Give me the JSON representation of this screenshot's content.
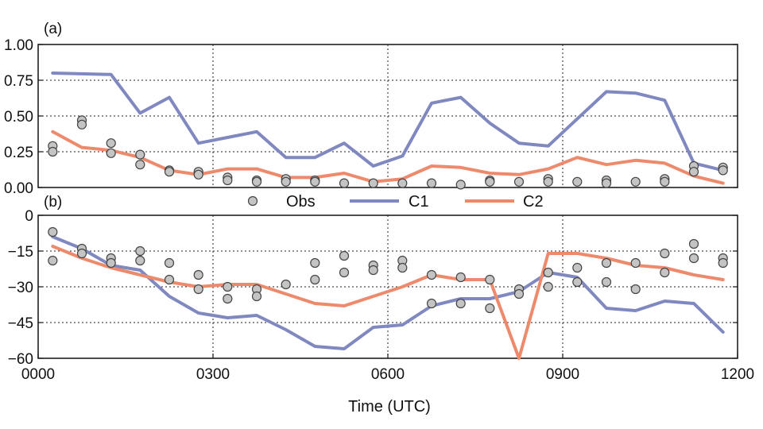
{
  "chart_data": [
    {
      "panel": "(a)",
      "type": "line",
      "ylim": [
        0,
        1.0
      ],
      "yticks": [
        0,
        0.25,
        0.5,
        0.75,
        1.0
      ],
      "ytick_labels": [
        "0.00",
        "0.25",
        "0.50",
        "0.75",
        "1.00"
      ],
      "xlim": [
        0,
        12
      ],
      "xgrid": [
        3,
        6,
        9
      ],
      "ygrid": [
        0.25,
        0.5,
        0.75
      ],
      "series": [
        {
          "name": "C1",
          "kind": "line",
          "color": "#8088c0",
          "x": [
            0.25,
            1.25,
            1.75,
            2.25,
            2.75,
            3.25,
            3.75,
            4.25,
            4.75,
            5.25,
            5.75,
            6.25,
            6.75,
            7.25,
            7.75,
            8.25,
            8.75,
            9.25,
            9.75,
            10.25,
            10.75,
            11.25,
            11.75
          ],
          "y": [
            0.8,
            0.79,
            0.52,
            0.63,
            0.31,
            0.35,
            0.39,
            0.21,
            0.21,
            0.31,
            0.15,
            0.22,
            0.59,
            0.63,
            0.45,
            0.31,
            0.29,
            0.48,
            0.67,
            0.66,
            0.61,
            0.17,
            0.12
          ]
        },
        {
          "name": "C2",
          "kind": "line",
          "color": "#ee8a6c",
          "x": [
            0.25,
            0.75,
            1.25,
            1.75,
            2.25,
            2.75,
            3.25,
            3.75,
            4.25,
            4.75,
            5.25,
            5.75,
            6.25,
            6.75,
            7.25,
            7.75,
            8.25,
            8.75,
            9.25,
            9.75,
            10.25,
            10.75,
            11.25,
            11.75
          ],
          "y": [
            0.39,
            0.28,
            0.26,
            0.21,
            0.12,
            0.09,
            0.13,
            0.13,
            0.07,
            0.07,
            0.1,
            0.04,
            0.06,
            0.15,
            0.14,
            0.1,
            0.09,
            0.13,
            0.21,
            0.16,
            0.19,
            0.17,
            0.08,
            0.03
          ]
        },
        {
          "name": "Obs",
          "kind": "scatter",
          "color": "#c4c4c4",
          "x": [
            0.25,
            0.25,
            0.75,
            0.75,
            1.25,
            1.25,
            1.75,
            1.75,
            2.25,
            2.25,
            2.75,
            2.75,
            3.25,
            3.25,
            3.75,
            3.75,
            4.25,
            4.25,
            4.75,
            4.75,
            5.25,
            5.75,
            6.25,
            6.75,
            7.25,
            7.75,
            7.75,
            8.25,
            8.75,
            8.75,
            9.25,
            9.75,
            9.75,
            10.25,
            10.75,
            10.75,
            11.25,
            11.25,
            11.75,
            11.75
          ],
          "y": [
            0.29,
            0.25,
            0.47,
            0.44,
            0.31,
            0.24,
            0.23,
            0.16,
            0.12,
            0.11,
            0.11,
            0.09,
            0.07,
            0.05,
            0.05,
            0.04,
            0.06,
            0.04,
            0.05,
            0.04,
            0.03,
            0.03,
            0.03,
            0.03,
            0.02,
            0.05,
            0.04,
            0.04,
            0.06,
            0.04,
            0.04,
            0.05,
            0.03,
            0.04,
            0.06,
            0.04,
            0.15,
            0.11,
            0.14,
            0.12
          ]
        }
      ]
    },
    {
      "panel": "(b)",
      "type": "line",
      "ylim": [
        -60,
        0
      ],
      "yticks": [
        -60,
        -45,
        -30,
        -15,
        0
      ],
      "ytick_labels": [
        "−60",
        "−45",
        "−30",
        "−15",
        "0"
      ],
      "xlim": [
        0,
        12
      ],
      "xticks": [
        0,
        3,
        6,
        9,
        12
      ],
      "xtick_labels": [
        "0000",
        "0300",
        "0600",
        "0900",
        "1200"
      ],
      "xgrid": [
        3,
        6,
        9
      ],
      "ygrid": [
        -45,
        -30,
        -15
      ],
      "xlabel": "Time (UTC)",
      "series": [
        {
          "name": "C1",
          "kind": "line",
          "color": "#8088c0",
          "x": [
            0.25,
            0.75,
            1.25,
            1.75,
            2.25,
            2.75,
            3.25,
            3.75,
            4.25,
            4.75,
            5.25,
            5.75,
            6.25,
            6.75,
            7.25,
            7.75,
            8.25,
            8.75,
            9.25,
            9.75,
            10.25,
            10.75,
            11.25,
            11.75
          ],
          "y": [
            -9,
            -14,
            -21,
            -23,
            -34,
            -41,
            -43,
            -42,
            -48,
            -55,
            -56,
            -47,
            -46,
            -38,
            -35,
            -35,
            -32,
            -24,
            -26,
            -39,
            -40,
            -36,
            -37,
            -49
          ]
        },
        {
          "name": "C2",
          "kind": "line",
          "color": "#ee8a6c",
          "x": [
            0.25,
            0.75,
            1.25,
            1.75,
            2.25,
            2.75,
            3.25,
            3.75,
            4.25,
            4.75,
            5.25,
            5.75,
            6.25,
            6.75,
            7.25,
            7.75,
            8.25,
            8.75,
            9.25,
            9.75,
            10.25,
            10.75,
            11.25,
            11.75
          ],
          "y": [
            -13,
            -18,
            -22,
            -25,
            -28,
            -30,
            -29,
            -29,
            -33,
            -37,
            -38,
            -34,
            -30,
            -25,
            -27,
            -27,
            -60,
            -16,
            -16,
            -18,
            -21,
            -22,
            -25,
            -27
          ]
        },
        {
          "name": "Obs",
          "kind": "scatter",
          "color": "#c4c4c4",
          "x": [
            0.25,
            0.25,
            0.75,
            0.75,
            1.25,
            1.25,
            1.75,
            1.75,
            2.25,
            2.25,
            2.75,
            2.75,
            3.25,
            3.25,
            3.75,
            3.75,
            4.25,
            4.75,
            4.75,
            5.25,
            5.25,
            5.75,
            5.75,
            6.25,
            6.25,
            6.75,
            6.75,
            7.25,
            7.25,
            7.75,
            7.75,
            8.25,
            8.25,
            8.75,
            8.75,
            9.25,
            9.25,
            9.75,
            9.75,
            10.25,
            10.25,
            10.75,
            10.75,
            11.25,
            11.25,
            11.75,
            11.75
          ],
          "y": [
            -7,
            -19,
            -14,
            -16,
            -18,
            -20,
            -15,
            -19,
            -20,
            -27,
            -25,
            -31,
            -30,
            -35,
            -31,
            -34,
            -29,
            -20,
            -27,
            -17,
            -24,
            -21,
            -23,
            -19,
            -22,
            -25,
            -37,
            -26,
            -37,
            -27,
            -39,
            -31,
            -33,
            -24,
            -30,
            -22,
            -28,
            -20,
            -28,
            -20,
            -31,
            -16,
            -24,
            -12,
            -18,
            -18,
            -20
          ]
        }
      ]
    }
  ],
  "legend": {
    "placement": "between-panels",
    "items": [
      {
        "label": "Obs",
        "kind": "scatter",
        "color": "#c4c4c4"
      },
      {
        "label": "C1",
        "kind": "line",
        "color": "#8088c0"
      },
      {
        "label": "C2",
        "kind": "line",
        "color": "#ee8a6c"
      }
    ]
  }
}
